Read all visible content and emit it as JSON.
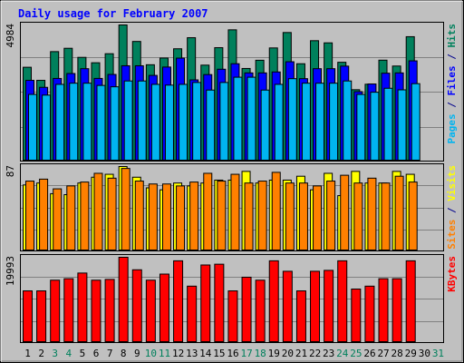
{
  "chart_data": {
    "type": "bar",
    "title": "Daily usage for February 2007",
    "categories": [
      "1",
      "2",
      "3",
      "4",
      "5",
      "6",
      "7",
      "8",
      "9",
      "10",
      "11",
      "12",
      "13",
      "14",
      "15",
      "16",
      "17",
      "18",
      "19",
      "20",
      "21",
      "22",
      "23",
      "24",
      "25",
      "26",
      "27",
      "28",
      "29",
      "30",
      "31"
    ],
    "weekend_days": [
      "3",
      "4",
      "10",
      "11",
      "17",
      "18",
      "24",
      "25",
      "31"
    ],
    "panels": [
      {
        "id": "hits",
        "ymax_label": "4984",
        "ymax": 4984,
        "labels": [
          {
            "text": "Pages",
            "color": "#00b4f0"
          },
          {
            "text": " / ",
            "color": "#00008b"
          },
          {
            "text": "Files",
            "color": "#0000ff"
          },
          {
            "text": " / ",
            "color": "#00008b"
          },
          {
            "text": "Hits",
            "color": "#00805c"
          }
        ],
        "series": [
          {
            "name": "Hits",
            "color": "#00805c",
            "values": [
              3435,
              2956,
              4008,
              4130,
              3797,
              3600,
              3931,
              4984,
              4380,
              3527,
              3773,
              4112,
              4517,
              3513,
              4152,
              4806,
              3391,
              3692,
              4143,
              4707,
              3564,
              4408,
              4329,
              3618,
              2613,
              2814,
              3695,
              3480,
              4554,
              0,
              0
            ]
          },
          {
            "name": "Files",
            "color": "#0000ff",
            "values": [
              2956,
              2700,
              3026,
              3206,
              3383,
              3027,
              3172,
              3490,
              3490,
              3137,
              3443,
              3770,
              2973,
              3167,
              3363,
              3565,
              3229,
              3229,
              3264,
              3637,
              3018,
              3383,
              3383,
              3477,
              2542,
              2823,
              3218,
              3229,
              3670,
              0,
              0
            ]
          },
          {
            "name": "Pages",
            "color": "#00b4f0",
            "values": [
              2441,
              2415,
              2809,
              2852,
              2852,
              2770,
              2720,
              2933,
              2933,
              2809,
              2781,
              2809,
              2878,
              2600,
              2878,
              3071,
              3071,
              2600,
              2809,
              3017,
              2852,
              2852,
              2852,
              2933,
              2441,
              2521,
              2666,
              2608,
              2835,
              0,
              0
            ]
          }
        ]
      },
      {
        "id": "visits",
        "ymax_label": "87",
        "ymax": 87,
        "labels": [
          {
            "text": "Sites",
            "color": "#ff8000"
          },
          {
            "text": " / ",
            "color": "#00008b"
          },
          {
            "text": "Visits",
            "color": "#ffff00"
          }
        ],
        "series": [
          {
            "name": "Visits",
            "color": "#ffff00",
            "values": [
              68,
              70,
              59,
              58,
              70,
              76,
              79,
              87,
              76,
              65,
              63,
              70,
              67,
              70,
              73,
              73,
              82,
              70,
              73,
              73,
              77,
              63,
              80,
              57,
              82,
              70,
              70,
              82,
              79,
              0,
              0
            ]
          },
          {
            "name": "Sites",
            "color": "#ff8000",
            "values": [
              72,
              74,
              64,
              67,
              71,
              80,
              75,
              85,
              72,
              69,
              69,
              67,
              71,
              80,
              72,
              79,
              70,
              72,
              81,
              70,
              70,
              67,
              72,
              78,
              70,
              75,
              70,
              77,
              71,
              0,
              0
            ]
          }
        ]
      },
      {
        "id": "kbytes",
        "ymax_label": "19993",
        "ymax": 19993,
        "labels": [
          {
            "text": "KBytes",
            "color": "#ff0000"
          }
        ],
        "series": [
          {
            "name": "KBytes",
            "color": "#ff0000",
            "values": [
              12118,
              12118,
              14624,
              14973,
              16297,
              14624,
              14803,
              19993,
              17064,
              14624,
              16056,
              19165,
              13224,
              18186,
              18369,
              12118,
              15323,
              14624,
              19166,
              16714,
              12118,
              16714,
              16926,
              19166,
              12545,
              13224,
              14973,
              14973,
              19166,
              0,
              0
            ]
          }
        ]
      }
    ]
  }
}
